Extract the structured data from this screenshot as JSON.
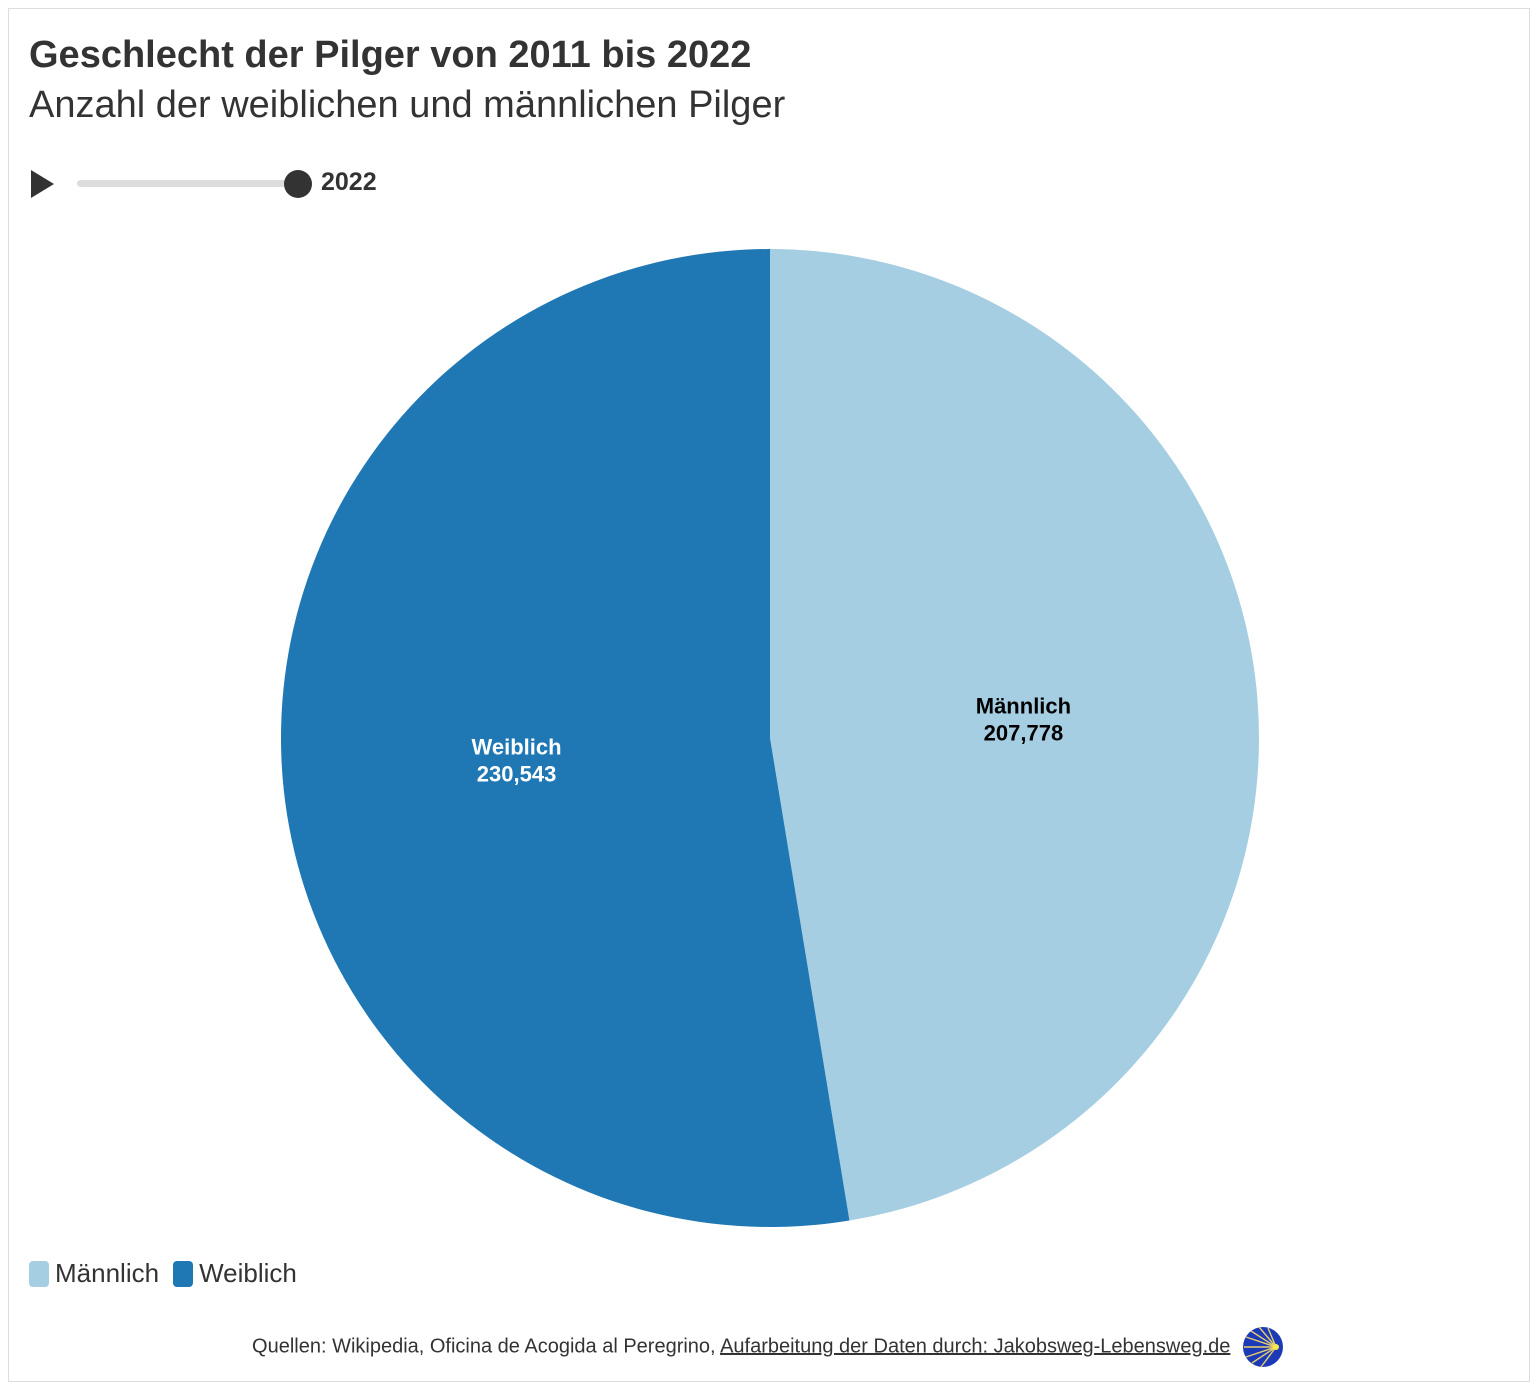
{
  "chart_data": {
    "type": "pie",
    "title": "Geschlecht der Pilger von 2011 bis 2022",
    "subtitle": "Anzahl der weiblichen und männlichen Pilger",
    "slices": [
      {
        "label": "Männlich",
        "value": 207778,
        "value_label": "207,778",
        "color": "#a6cee3",
        "text_color": "#000000"
      },
      {
        "label": "Weiblich",
        "value": 230543,
        "value_label": "230,543",
        "color": "#1f78b4",
        "text_color": "#ffffff"
      }
    ],
    "start_angle_deg": 0,
    "direction": "clockwise",
    "legend": {
      "position": "bottom-left",
      "items": [
        "Männlich",
        "Weiblich"
      ]
    }
  },
  "timeline": {
    "current_year": "2022",
    "range": [
      2011,
      2022
    ],
    "progress": 1.0,
    "play_icon": "play-icon"
  },
  "footer": {
    "source_text": "Quellen: Wikipedia, Oficina de Acogida al Peregrino, ",
    "link_text": "Aufarbeitung der Daten durch: Jakobsweg-Lebensweg.de",
    "logo_icon": "scallop-shell-logo"
  }
}
